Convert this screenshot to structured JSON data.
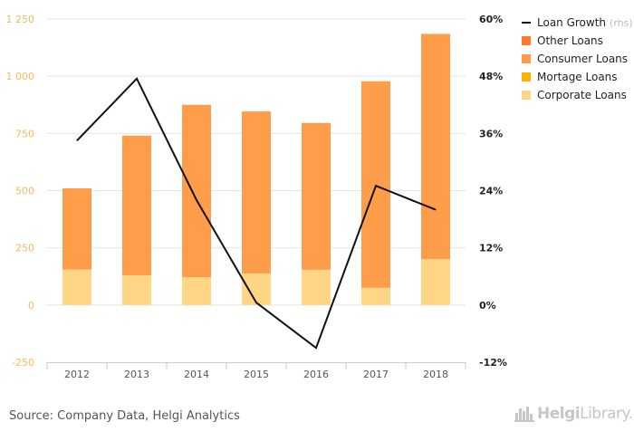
{
  "source": "Source: Company Data, Helgi Analytics",
  "logo": {
    "bold": "Helgi",
    "rest": "Library",
    "suffix": "."
  },
  "colors": {
    "other": "#ff7a2e",
    "consumer": "#ff9d4a",
    "mortgage": "#ffb300",
    "corporate": "#ffd686",
    "line": "#111111",
    "left_axis": "#f4bb5f",
    "grid": "#e4e4e4"
  },
  "chart_data": {
    "type": "bar",
    "stacked": true,
    "categories": [
      "2012",
      "2013",
      "2014",
      "2015",
      "2016",
      "2017",
      "2018"
    ],
    "series": [
      {
        "name": "Corporate Loans",
        "values": [
          155,
          130,
          122,
          138,
          154,
          75,
          200
        ]
      },
      {
        "name": "Mortage Loans",
        "values": [
          0,
          0,
          0,
          0,
          0,
          0,
          0
        ]
      },
      {
        "name": "Consumer Loans",
        "values": [
          355,
          610,
          753,
          708,
          642,
          903,
          985
        ]
      },
      {
        "name": "Other Loans",
        "values": [
          0,
          0,
          0,
          0,
          0,
          0,
          0
        ]
      }
    ],
    "line_series": {
      "name": "Loan Growth",
      "name_suffix": "(rhs)",
      "axis": "right",
      "values": [
        34.5,
        47.5,
        22.0,
        0.5,
        -9.0,
        25.0,
        20.0
      ]
    },
    "y_left": {
      "ylim": [
        -250,
        1250
      ],
      "ticks": [
        -250,
        0,
        250,
        500,
        750,
        1000,
        1250
      ],
      "tick_labels": [
        "-250",
        "0",
        "250",
        "500",
        "750",
        "1 000",
        "1 250"
      ]
    },
    "y_right": {
      "ylim": [
        -12,
        60
      ],
      "ticks": [
        -12,
        0,
        12,
        24,
        36,
        48,
        60
      ],
      "tick_labels": [
        "-12%",
        "0%",
        "12%",
        "24%",
        "36%",
        "48%",
        "60%"
      ]
    },
    "grid": true,
    "legend_position": "top-right",
    "legend": [
      {
        "key": "Loan Growth",
        "label": "Loan Growth",
        "suffix": "(rhs)",
        "kind": "line"
      },
      {
        "key": "Other Loans",
        "label": "Other Loans",
        "kind": "box"
      },
      {
        "key": "Consumer Loans",
        "label": "Consumer Loans",
        "kind": "box"
      },
      {
        "key": "Mortage Loans",
        "label": "Mortage Loans",
        "kind": "box"
      },
      {
        "key": "Corporate Loans",
        "label": "Corporate Loans",
        "kind": "box"
      }
    ]
  }
}
